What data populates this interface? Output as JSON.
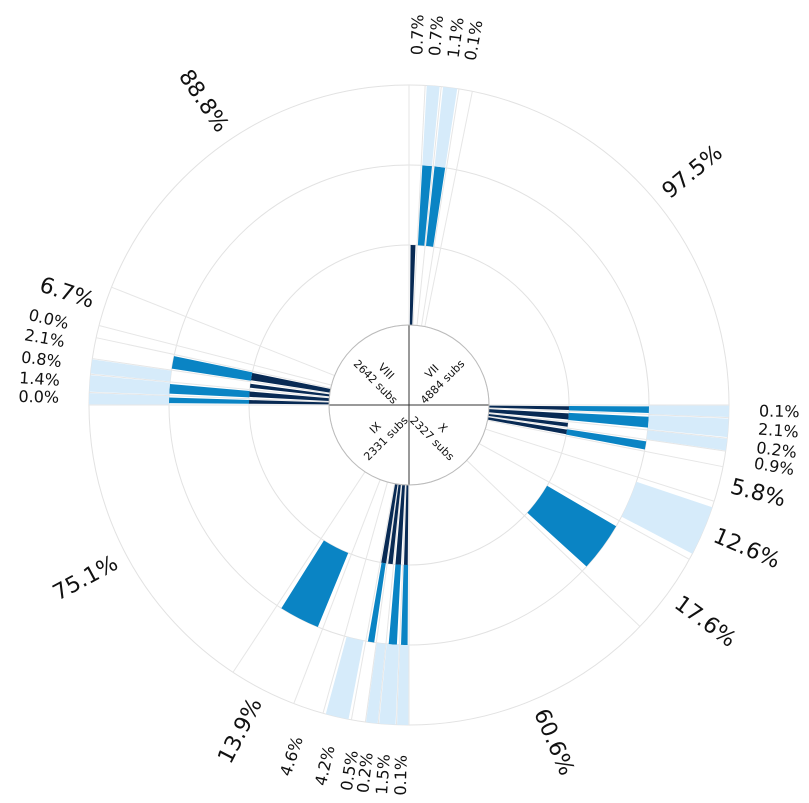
{
  "chart_data": {
    "type": "radial-bar",
    "colors": [
      "#082a54",
      "#0a84c4",
      "#d6ebfa"
    ],
    "quadrants": [
      {
        "name": "VII",
        "subs": "4884 subs",
        "sectors": [
          {
            "value": 0.7,
            "label": "0.7%",
            "bars": [
              0.6,
              0,
              0
            ]
          },
          {
            "value": 0.7,
            "label": "0.7%",
            "bars": [
              0,
              0.8,
              0.8
            ]
          },
          {
            "value": 1.1,
            "label": "1.1%",
            "bars": [
              0,
              0.8,
              0.8
            ]
          },
          {
            "value": 0.1,
            "label": "0.1%",
            "bars": [
              0,
              0,
              0
            ]
          },
          {
            "value": 97.5,
            "label": "97.5%",
            "bars": [
              0,
              0,
              0
            ]
          }
        ]
      },
      {
        "name": "X",
        "subs": "2327 subs",
        "sectors": [
          {
            "value": 0.1,
            "label": "0.1%",
            "bars": [
              0.6,
              0.7,
              0.9
            ]
          },
          {
            "value": 2.1,
            "label": "2.1%",
            "bars": [
              0.6,
              0.7,
              0.9
            ]
          },
          {
            "value": 0.2,
            "label": "0.2%",
            "bars": [
              0.6,
              0,
              0.9
            ]
          },
          {
            "value": 0.9,
            "label": "0.9%",
            "bars": [
              0.6,
              0.7,
              0
            ]
          },
          {
            "value": 5.8,
            "label": "5.8%",
            "bars": [
              0,
              0,
              0
            ]
          },
          {
            "value": 12.6,
            "label": "12.6%",
            "bars": [
              0,
              0,
              0.8
            ]
          },
          {
            "value": 17.6,
            "label": "17.6%",
            "bars": [
              0,
              0.8,
              0
            ]
          },
          {
            "value": 60.6,
            "label": "60.6%",
            "bars": [
              0,
              0,
              0
            ]
          }
        ]
      },
      {
        "name": "IX",
        "subs": "2331 subs",
        "sectors": [
          {
            "value": 0.1,
            "label": "0.1%",
            "bars": [
              0.6,
              0.7,
              0.9
            ]
          },
          {
            "value": 1.5,
            "label": "1.5%",
            "bars": [
              0.6,
              0.6,
              0.9
            ]
          },
          {
            "value": 0.2,
            "label": "0.2%",
            "bars": [
              0.7,
              0,
              0.9
            ]
          },
          {
            "value": 0.5,
            "label": "0.5%",
            "bars": [
              0.7,
              0.6,
              0
            ]
          },
          {
            "value": 4.2,
            "label": "4.2%",
            "bars": [
              0,
              0,
              0.8
            ]
          },
          {
            "value": 4.6,
            "label": "4.6%",
            "bars": [
              0,
              0,
              0
            ]
          },
          {
            "value": 13.9,
            "label": "13.9%",
            "bars": [
              0,
              0.8,
              0
            ]
          },
          {
            "value": 75.1,
            "label": "75.1%",
            "bars": [
              0,
              0,
              0
            ]
          }
        ]
      },
      {
        "name": "VIII",
        "subs": "2642 subs",
        "sectors": [
          {
            "value": 0.0,
            "label": "0.0%",
            "bars": [
              0.6,
              0.6,
              0.9
            ]
          },
          {
            "value": 1.4,
            "label": "1.4%",
            "bars": [
              0.6,
              0.7,
              0.9
            ]
          },
          {
            "value": 0.8,
            "label": "0.8%",
            "bars": [
              0.5,
              0,
              0.9
            ]
          },
          {
            "value": 2.1,
            "label": "2.1%",
            "bars": [
              0.7,
              0.8,
              0
            ]
          },
          {
            "value": 0.0,
            "label": "0.0%",
            "bars": [
              0,
              0,
              0
            ]
          },
          {
            "value": 6.7,
            "label": "6.7%",
            "bars": [
              0,
              0,
              0
            ]
          },
          {
            "value": 88.8,
            "label": "88.8%",
            "bars": [
              0,
              0,
              0
            ]
          }
        ]
      }
    ]
  }
}
